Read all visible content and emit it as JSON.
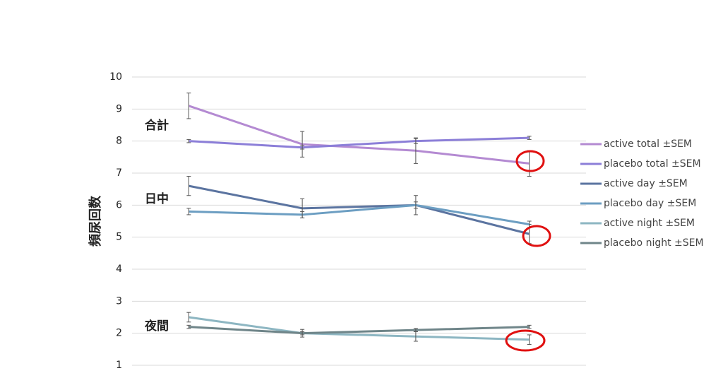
{
  "chart_data": {
    "type": "line",
    "y_label": "頻尿回数",
    "categories": [
      null,
      null,
      null,
      null
    ],
    "ylim": [
      1,
      10
    ],
    "yticks": [
      1,
      2,
      3,
      4,
      5,
      6,
      7,
      8,
      9,
      10
    ],
    "grid": true,
    "legend": "right",
    "annotations": [
      "合計",
      "日中",
      "夜間"
    ],
    "series": [
      {
        "name": "active total ±SEM",
        "color": "#b48ad2",
        "values": [
          9.1,
          7.9,
          7.7,
          7.3
        ],
        "errors": [
          0.4,
          0.4,
          0.4,
          0.4
        ]
      },
      {
        "name": "placebo total ±SEM",
        "color": "#8c7fd8",
        "values": [
          8.0,
          7.8,
          8.0,
          8.1
        ],
        "errors": [
          0.05,
          0.05,
          0.08,
          0.05
        ]
      },
      {
        "name": "active day ±SEM",
        "color": "#5b74a0",
        "values": [
          6.6,
          5.9,
          6.0,
          5.1
        ],
        "errors": [
          0.3,
          0.3,
          0.3,
          0.3
        ]
      },
      {
        "name": "placebo day ±SEM",
        "color": "#6c9ec2",
        "values": [
          5.8,
          5.7,
          6.0,
          5.4
        ],
        "errors": [
          0.1,
          0.1,
          0.1,
          0.1
        ]
      },
      {
        "name": "active night ±SEM",
        "color": "#8db6c2",
        "values": [
          2.5,
          2.0,
          1.9,
          1.8
        ],
        "errors": [
          0.15,
          0.12,
          0.15,
          0.15
        ]
      },
      {
        "name": "placebo night ±SEM",
        "color": "#6f8589",
        "values": [
          2.2,
          2.0,
          2.1,
          2.2
        ],
        "errors": [
          0.05,
          0.05,
          0.05,
          0.05
        ]
      }
    ]
  }
}
